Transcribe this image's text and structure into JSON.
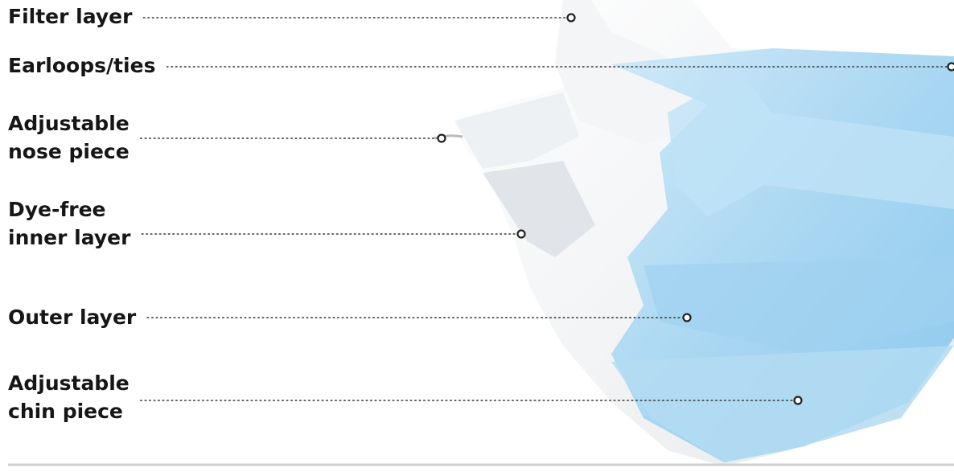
{
  "labels": [
    {
      "lines": [
        "Filter layer"
      ]
    },
    {
      "lines": [
        "Earloops/ties"
      ]
    },
    {
      "lines": [
        "Adjustable",
        "nose piece"
      ]
    },
    {
      "lines": [
        "Dye-free",
        "inner layer"
      ]
    },
    {
      "lines": [
        "Outer layer"
      ]
    },
    {
      "lines": [
        "Adjustable",
        "chin piece"
      ]
    }
  ]
}
